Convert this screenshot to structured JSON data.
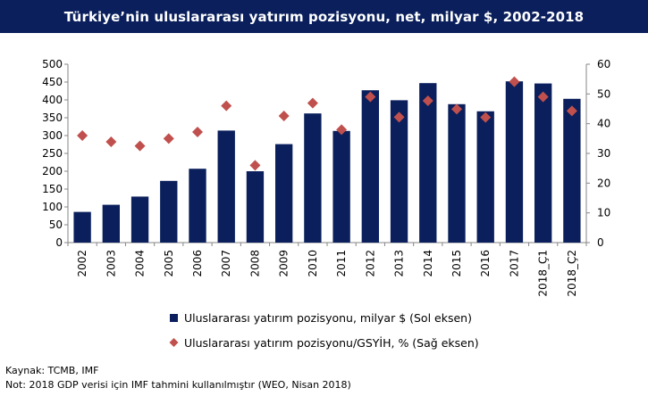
{
  "title": "Türkiye’nin uluslararası yatırım pozisyonu, net, milyar $, 2002-2018",
  "chart_data": {
    "type": "bar",
    "categories": [
      "2002",
      "2003",
      "2004",
      "2005",
      "2006",
      "2007",
      "2008",
      "2009",
      "2010",
      "2011",
      "2012",
      "2013",
      "2014",
      "2015",
      "2016",
      "2017",
      "2018_Ç1",
      "2018_Ç2"
    ],
    "series": [
      {
        "name": "Uluslararası yatırım pozisyonu, milyar $ (Sol eksen)",
        "type": "bar",
        "axis": "left",
        "color": "#0a1f5c",
        "values": [
          86,
          106,
          129,
          173,
          207,
          314,
          200,
          276,
          362,
          313,
          427,
          399,
          447,
          388,
          368,
          452,
          446,
          403
        ]
      },
      {
        "name": "Uluslararası yatırım pozisyonu/GSYİH, % (Sağ eksen)",
        "type": "scatter",
        "axis": "right",
        "color": "#c0504d",
        "values": [
          36,
          33.9,
          32.5,
          35,
          37.2,
          46,
          26,
          42.6,
          46.9,
          38,
          49,
          42.2,
          47.7,
          44.9,
          42.1,
          54.1,
          49,
          44.3
        ]
      }
    ],
    "ylim": [
      0,
      500
    ],
    "yticks": [
      0,
      50,
      100,
      150,
      200,
      250,
      300,
      350,
      400,
      450,
      500
    ],
    "y2lim": [
      0,
      60
    ],
    "y2ticks": [
      0,
      10,
      20,
      30,
      40,
      50,
      60
    ],
    "grid": false,
    "legend": "bottom"
  },
  "footer": {
    "source": "Kaynak:  TCMB, IMF",
    "note": "Not: 2018 GDP verisi için IMF tahmini kullanılmıştır  (WEO, Nisan 2018)"
  }
}
